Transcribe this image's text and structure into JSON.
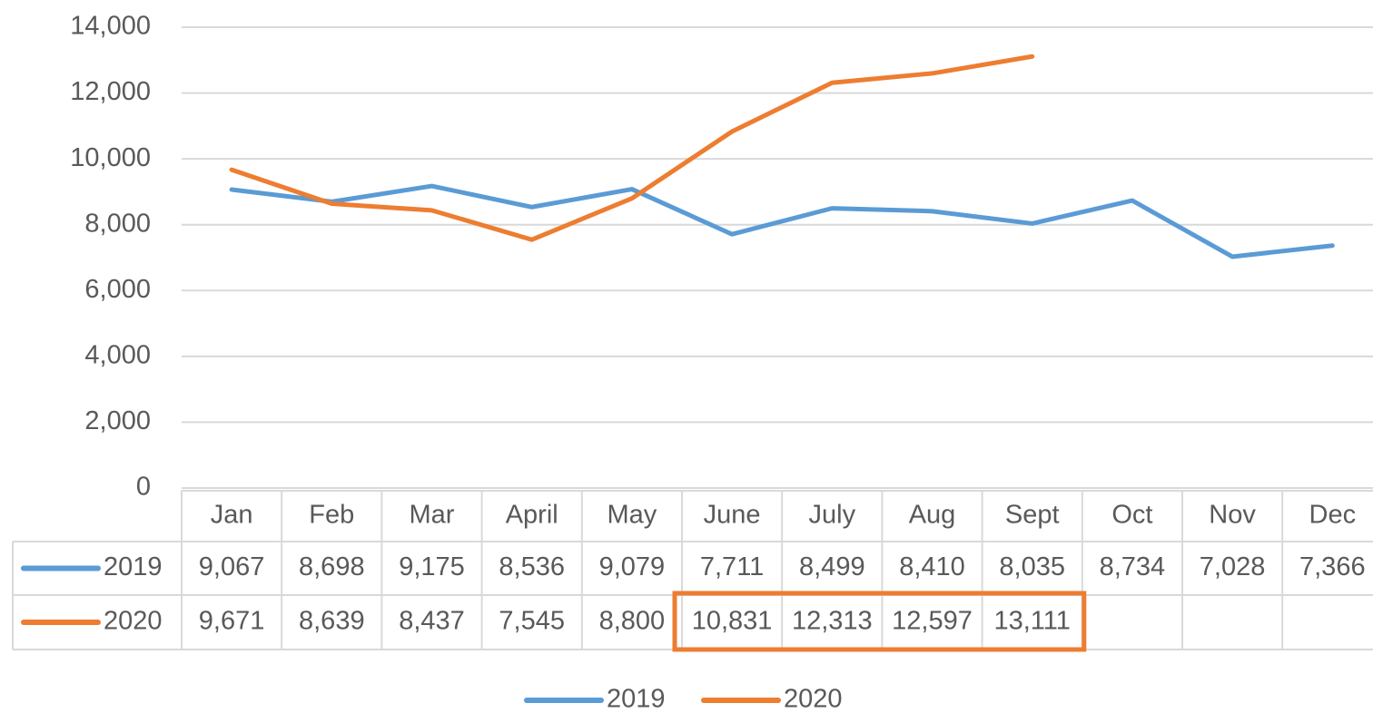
{
  "chart_data": {
    "type": "line",
    "categories": [
      "Jan",
      "Feb",
      "Mar",
      "April",
      "May",
      "June",
      "July",
      "Aug",
      "Sept",
      "Oct",
      "Nov",
      "Dec"
    ],
    "series": [
      {
        "name": "2019",
        "color": "#5b9bd5",
        "values": [
          9067,
          8698,
          9175,
          8536,
          9079,
          7711,
          8499,
          8410,
          8035,
          8734,
          7028,
          7366
        ],
        "value_labels": [
          "9,067",
          "8,698",
          "9,175",
          "8,536",
          "9,079",
          "7,711",
          "8,499",
          "8,410",
          "8,035",
          "8,734",
          "7,028",
          "7,366"
        ]
      },
      {
        "name": "2020",
        "color": "#ed7d31",
        "values": [
          9671,
          8639,
          8437,
          7545,
          8800,
          10831,
          12313,
          12597,
          13111,
          null,
          null,
          null
        ],
        "value_labels": [
          "9,671",
          "8,639",
          "8,437",
          "7,545",
          "8,800",
          "10,831",
          "12,313",
          "12,597",
          "13,111",
          null,
          null,
          null
        ]
      }
    ],
    "ylim": [
      0,
      14000
    ],
    "yticks": [
      0,
      {
        "value": 2000,
        "label": "2,000"
      },
      {
        "value": 4000,
        "label": "4,000"
      },
      {
        "value": 6000,
        "label": "6,000"
      },
      {
        "value": 8000,
        "label": "8,000"
      },
      {
        "value": 10000,
        "label": "10,000"
      },
      {
        "value": 12000,
        "label": "12,000"
      },
      {
        "value": 14000,
        "label": "14,000"
      }
    ],
    "grid": true,
    "legend": "bottom",
    "data_table": true
  }
}
